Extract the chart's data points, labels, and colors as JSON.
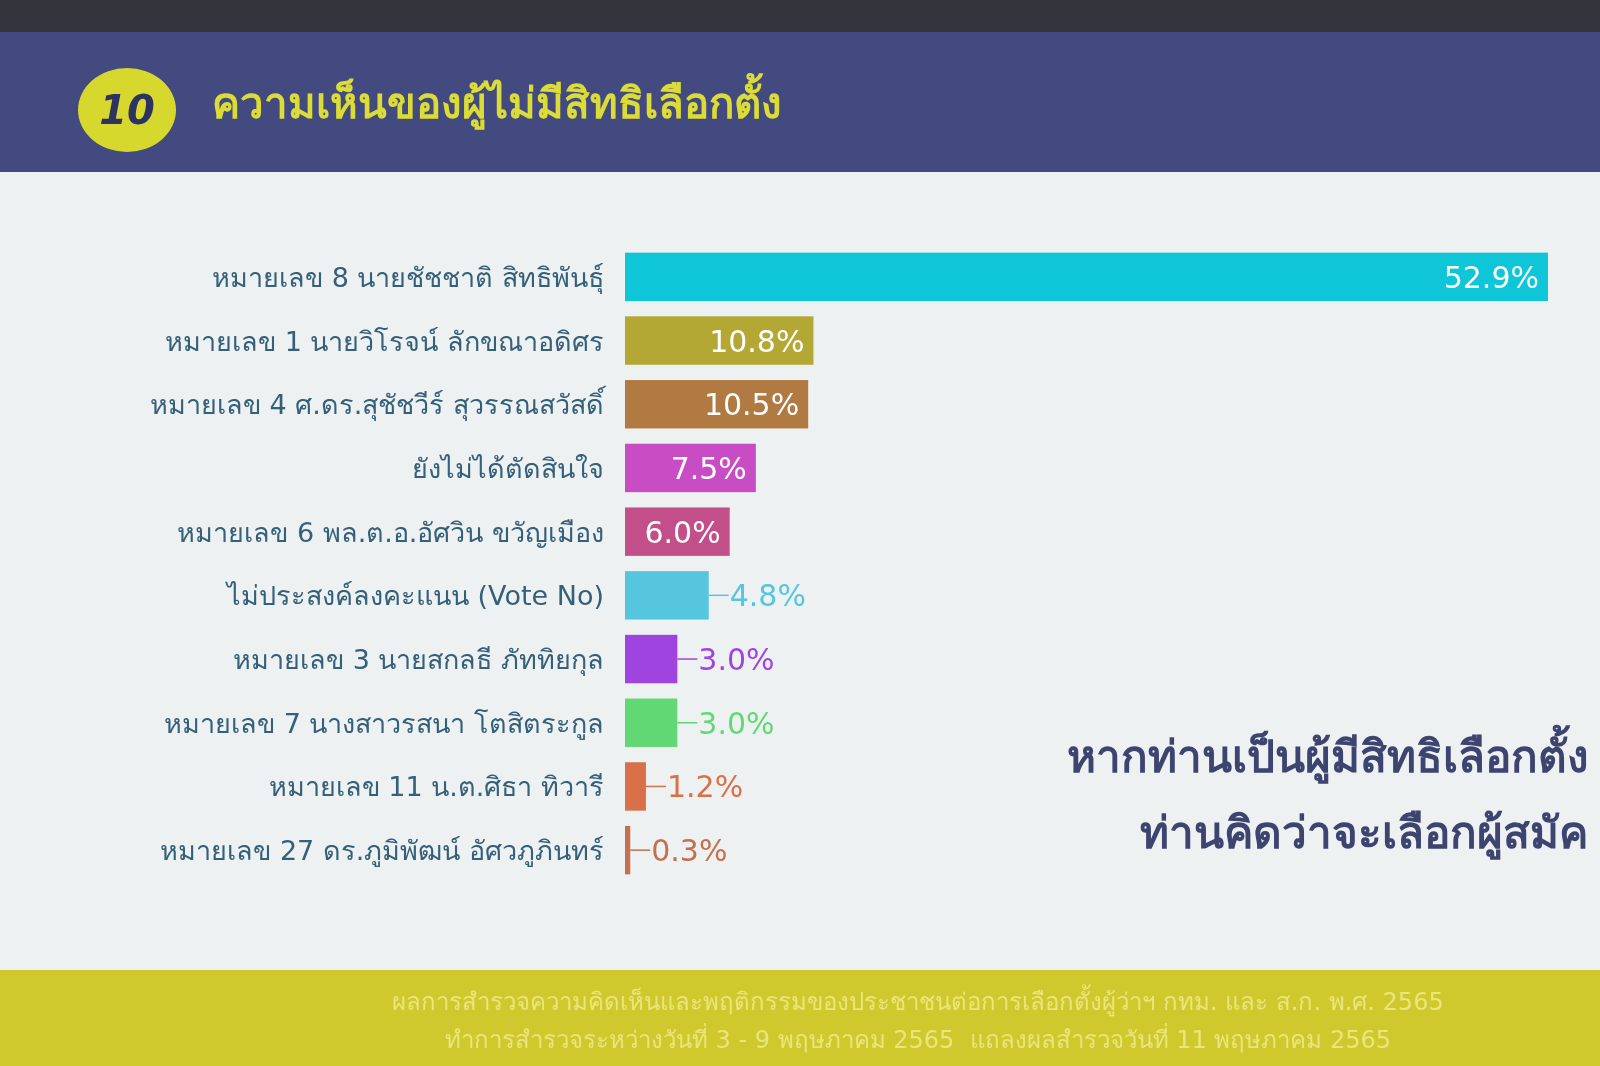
{
  "chart_data": {
    "type": "bar",
    "orientation": "horizontal",
    "title": "ความเห็นของผู้ไม่มีสิทธิเลือกตั้ง",
    "subtitle": "หากท่านเป็นผู้มีสิทธิเลือกตั้ง ท่านคิดว่าจะเลือกผู้สมัค",
    "categories": [
      "หมายเลข 8 นายชัชชาติ สิทธิพันธุ์",
      "หมายเลข 1 นายวิโรจน์ ลักขณาอดิศร",
      "หมายเลข 4 ศ.ดร.สุชัชวีร์ สุวรรณสวัสดิ์",
      "ยังไม่ได้ตัดสินใจ",
      "หมายเลข 6 พล.ต.อ.อัศวิน ขวัญเมือง",
      "ไม่ประสงค์ลงคะแนน (Vote No)",
      "หมายเลข 3 นายสกลธี ภัททิยกุล",
      "หมายเลข 7 นางสาวรสนา โตสิตระกูล",
      "หมายเลข 11 น.ต.ศิธา ทิวารี",
      "หมายเลข 27 ดร.ภูมิพัฒน์ อัศวภูภินทร์"
    ],
    "values": [
      52.9,
      10.8,
      10.5,
      7.5,
      6.0,
      4.8,
      3.0,
      3.0,
      1.2,
      0.3
    ],
    "value_labels": [
      "52.9%",
      "10.8%",
      "10.5%",
      "7.5%",
      "6.0%",
      "4.8%",
      "3.0%",
      "3.0%",
      "1.2%",
      "0.3%"
    ],
    "colors": [
      "#0fc6d8",
      "#b3a834",
      "#b07a42",
      "#c84cc4",
      "#c24f8a",
      "#55c6de",
      "#a044e0",
      "#62d874",
      "#d8704a",
      "#c4704e"
    ],
    "annotations": [
      "10",
      "ผลการสำรวจความคิดเห็นและพฤติกรรมของประชาชนต่อการเลือกตั้งผู้ว่าฯ กทม. และ ส.ก. พ.ศ. 2565",
      "ทำการสำรวจระหว่างวันที่ 3 - 9 พฤษภาคม 2565  แถลงผลสำรวจวันที่ 11 พฤษภาคม 2565"
    ]
  }
}
